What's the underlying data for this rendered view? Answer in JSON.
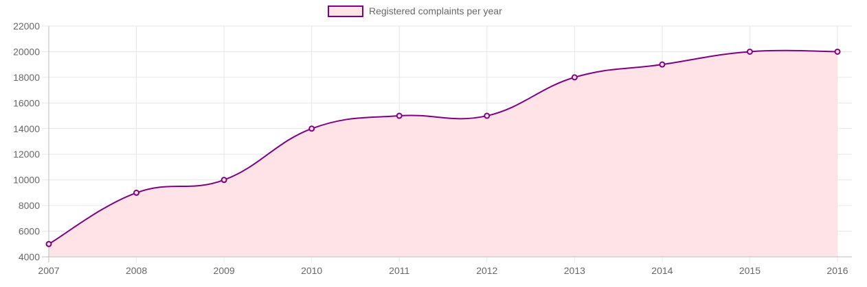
{
  "chart_data": {
    "type": "area",
    "title": "",
    "xlabel": "",
    "ylabel": "",
    "categories": [
      "2007",
      "2008",
      "2009",
      "2010",
      "2011",
      "2012",
      "2013",
      "2014",
      "2015",
      "2016"
    ],
    "series": [
      {
        "name": "Registered complaints per year",
        "values": [
          5000,
          9000,
          10000,
          14000,
          15000,
          15000,
          18000,
          19000,
          20000,
          20000
        ],
        "line_color": "#800080",
        "fill_color": "#ffe3e6"
      }
    ],
    "ylim": [
      4000,
      22000
    ],
    "y_ticks": [
      4000,
      6000,
      8000,
      10000,
      12000,
      14000,
      16000,
      18000,
      20000,
      22000
    ],
    "grid": true,
    "legend_position": "top-center",
    "curve": "smooth"
  }
}
